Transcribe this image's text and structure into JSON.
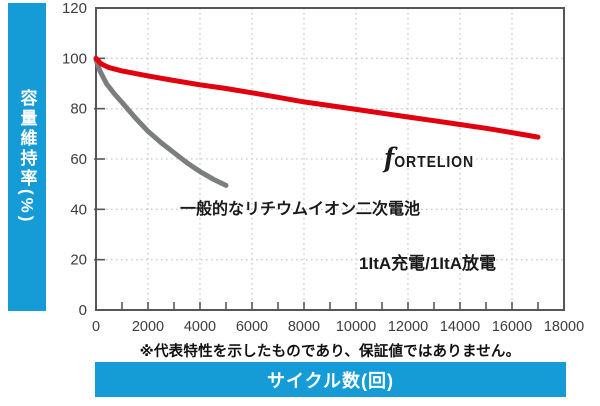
{
  "colors": {
    "accent_blue": "#159BD5",
    "fortelion_red": "#E2000F",
    "generic_gray": "#7C7D7F",
    "plot_border": "#55565A",
    "gridline": "#CBCBCB",
    "tick_label": "#3D3D40",
    "background": "#FFFFFF"
  },
  "y_axis_bar": {
    "label": "容量維持率(%)"
  },
  "x_axis_bar": {
    "label": "サイクル数(回)"
  },
  "footnote": {
    "text": "※代表特性を示したものであり、保証値ではありません。"
  },
  "annotations": {
    "generic_battery_label": "一般的なリチウムイオン二次電池",
    "test_condition": "1ItA充電/1ItA放電",
    "brand_first": "f",
    "brand_rest": "ORTELION"
  },
  "chart_data": {
    "type": "line",
    "title": "",
    "xlabel": "サイクル数(回)",
    "ylabel": "容量維持率(%)",
    "xlim": [
      0,
      18000
    ],
    "ylim": [
      0,
      120
    ],
    "x_ticks": [
      0,
      2000,
      4000,
      6000,
      8000,
      10000,
      12000,
      14000,
      16000,
      18000
    ],
    "x_minor_step": 1000,
    "y_ticks": [
      0,
      20,
      40,
      60,
      80,
      100,
      120
    ],
    "grid": "dotted",
    "legend_position": "none",
    "series": [
      {
        "name": "FORTELION",
        "color": "#E2000F",
        "x": [
          0,
          200,
          500,
          1000,
          1500,
          2000,
          3000,
          4000,
          5000,
          6000,
          7000,
          8000,
          9000,
          10000,
          11000,
          12000,
          13000,
          14000,
          15000,
          16000,
          17000
        ],
        "y": [
          100,
          97.8,
          96.3,
          95,
          94,
          93,
          91.2,
          89.5,
          88,
          86.3,
          84.5,
          82.7,
          81.2,
          79.7,
          78.2,
          76.7,
          75.2,
          73.7,
          72.2,
          70.5,
          68.7
        ]
      },
      {
        "name": "一般的なリチウムイオン二次電池",
        "color": "#7C7D7F",
        "x": [
          0,
          150,
          400,
          700,
          1000,
          1500,
          2000,
          2500,
          3000,
          3500,
          4000,
          4500,
          5000
        ],
        "y": [
          99.5,
          95,
          90,
          86,
          82.5,
          76.5,
          71,
          66.5,
          62.5,
          58.5,
          55,
          52,
          49.5
        ]
      }
    ]
  }
}
